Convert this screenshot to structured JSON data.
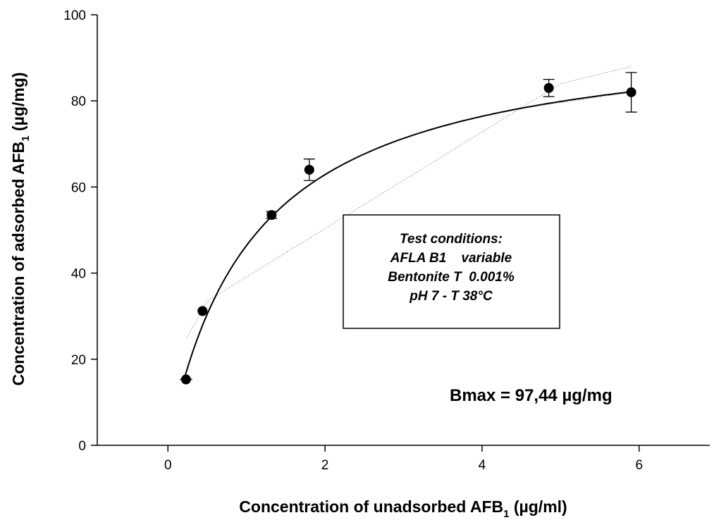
{
  "chart_data": {
    "type": "scatter",
    "xlabel": {
      "main": "Concentration of unadsorbed AFB",
      "sub": "1",
      "unit": " (µg/ml)"
    },
    "ylabel": {
      "main": "Concentration of  adsorbed AFB",
      "sub": "1",
      "unit": " (µg/mg)"
    },
    "xlim": [
      -0.9,
      6.9
    ],
    "ylim": [
      0,
      100
    ],
    "x_ticks": [
      0,
      2,
      4,
      6
    ],
    "y_ticks": [
      0,
      20,
      40,
      60,
      80,
      100
    ],
    "grid": false,
    "points": [
      {
        "x": 0.23,
        "y": 15.3,
        "xerr": 0.08,
        "yerr": 0.3
      },
      {
        "x": 0.44,
        "y": 31.2,
        "xerr": 0.0,
        "yerr": 0.4
      },
      {
        "x": 1.32,
        "y": 53.5,
        "xerr": 0.0,
        "yerr": 0.8
      },
      {
        "x": 1.8,
        "y": 64.0,
        "xerr": 0.0,
        "yerr": 2.5
      },
      {
        "x": 4.85,
        "y": 83.0,
        "xerr": 0.0,
        "yerr": 2.0
      },
      {
        "x": 5.9,
        "y": 82.0,
        "xerr": 0.0,
        "yerr": 4.6
      }
    ],
    "fit": {
      "model": "hyperbola",
      "bmax": 97.44,
      "kd": 1.1,
      "x_range": [
        0.22,
        5.9
      ]
    },
    "confidence_band": {
      "upper": [
        [
          0.24,
          25.0
        ],
        [
          0.5,
          33.5
        ],
        [
          5.0,
          84.0
        ],
        [
          5.9,
          88.0
        ]
      ],
      "lower": [
        [
          4.4,
          78.0
        ],
        [
          5.9,
          82.0
        ]
      ]
    },
    "annotation_box": {
      "lines": [
        "Test conditions:",
        "AFLA B1    variable",
        "Bentonite T  0.001%",
        "pH 7 - T 38°C"
      ]
    },
    "bmax_label": "Bmax = 97,44 µg/mg"
  }
}
